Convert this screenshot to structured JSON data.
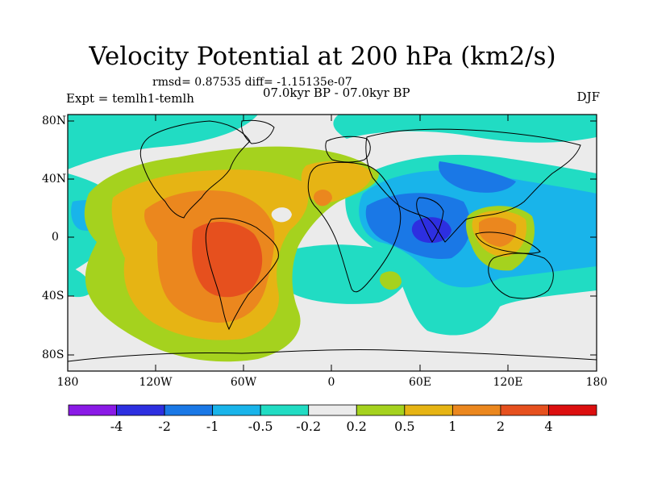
{
  "title": "Velocity Potential at 200 hPa (km2/s)",
  "stats": "rmsd= 0.87535  diff= -1.15135e-07",
  "period": "07.0kyr BP - 07.0kyr BP",
  "experiment": "Expt = temlh1-temlh",
  "season": "DJF",
  "lat_ticks": [
    "80N",
    "40N",
    "0",
    "40S",
    "80S"
  ],
  "lon_ticks": [
    "180",
    "120W",
    "60W",
    "0",
    "60E",
    "120E",
    "180"
  ],
  "colorbar": {
    "labels": [
      "-4",
      "-2",
      "-1",
      "-0.5",
      "-0.2",
      "0.2",
      "0.5",
      "1",
      "2",
      "4"
    ],
    "colors": [
      "#8a1ae6",
      "#2d2fe0",
      "#1a78e6",
      "#19b4ea",
      "#21dcc3",
      "#ebebeb",
      "#a5d21e",
      "#e6b414",
      "#eb871e",
      "#e6501e",
      "#dc0f0f"
    ]
  },
  "field_colors": {
    "neutral": "#ebebeb",
    "cyan": "#21dcc3",
    "lightblue": "#19b4ea",
    "blue": "#1a78e6",
    "darkblue": "#2d2fe0",
    "lime": "#a5d21e",
    "yellow": "#e6b414",
    "orange": "#eb871e",
    "redorange": "#e6501e"
  }
}
